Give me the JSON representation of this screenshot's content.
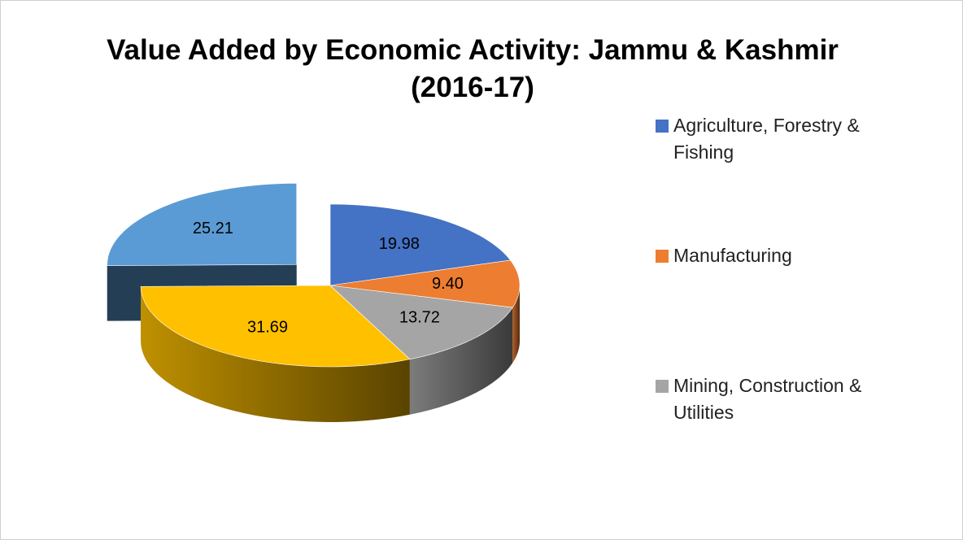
{
  "chart_data": {
    "type": "pie3d",
    "title": "Value Added by Economic Activity: Jammu & Kashmir (2016-17)",
    "categories": [
      "Agriculture, Forestry & Fishing",
      "Manufacturing",
      "Mining, Construction & Utilities",
      null,
      null
    ],
    "values": [
      19.98,
      9.4,
      13.72,
      31.69,
      25.21
    ],
    "value_labels": [
      "19.98",
      "9.40",
      "13.72",
      "31.69",
      "25.21"
    ],
    "colors": [
      "#4472c4",
      "#ed7d31",
      "#a5a5a5",
      "#ffc000",
      "#5b9bd5"
    ],
    "exploded": [
      4
    ],
    "legend": "right"
  }
}
